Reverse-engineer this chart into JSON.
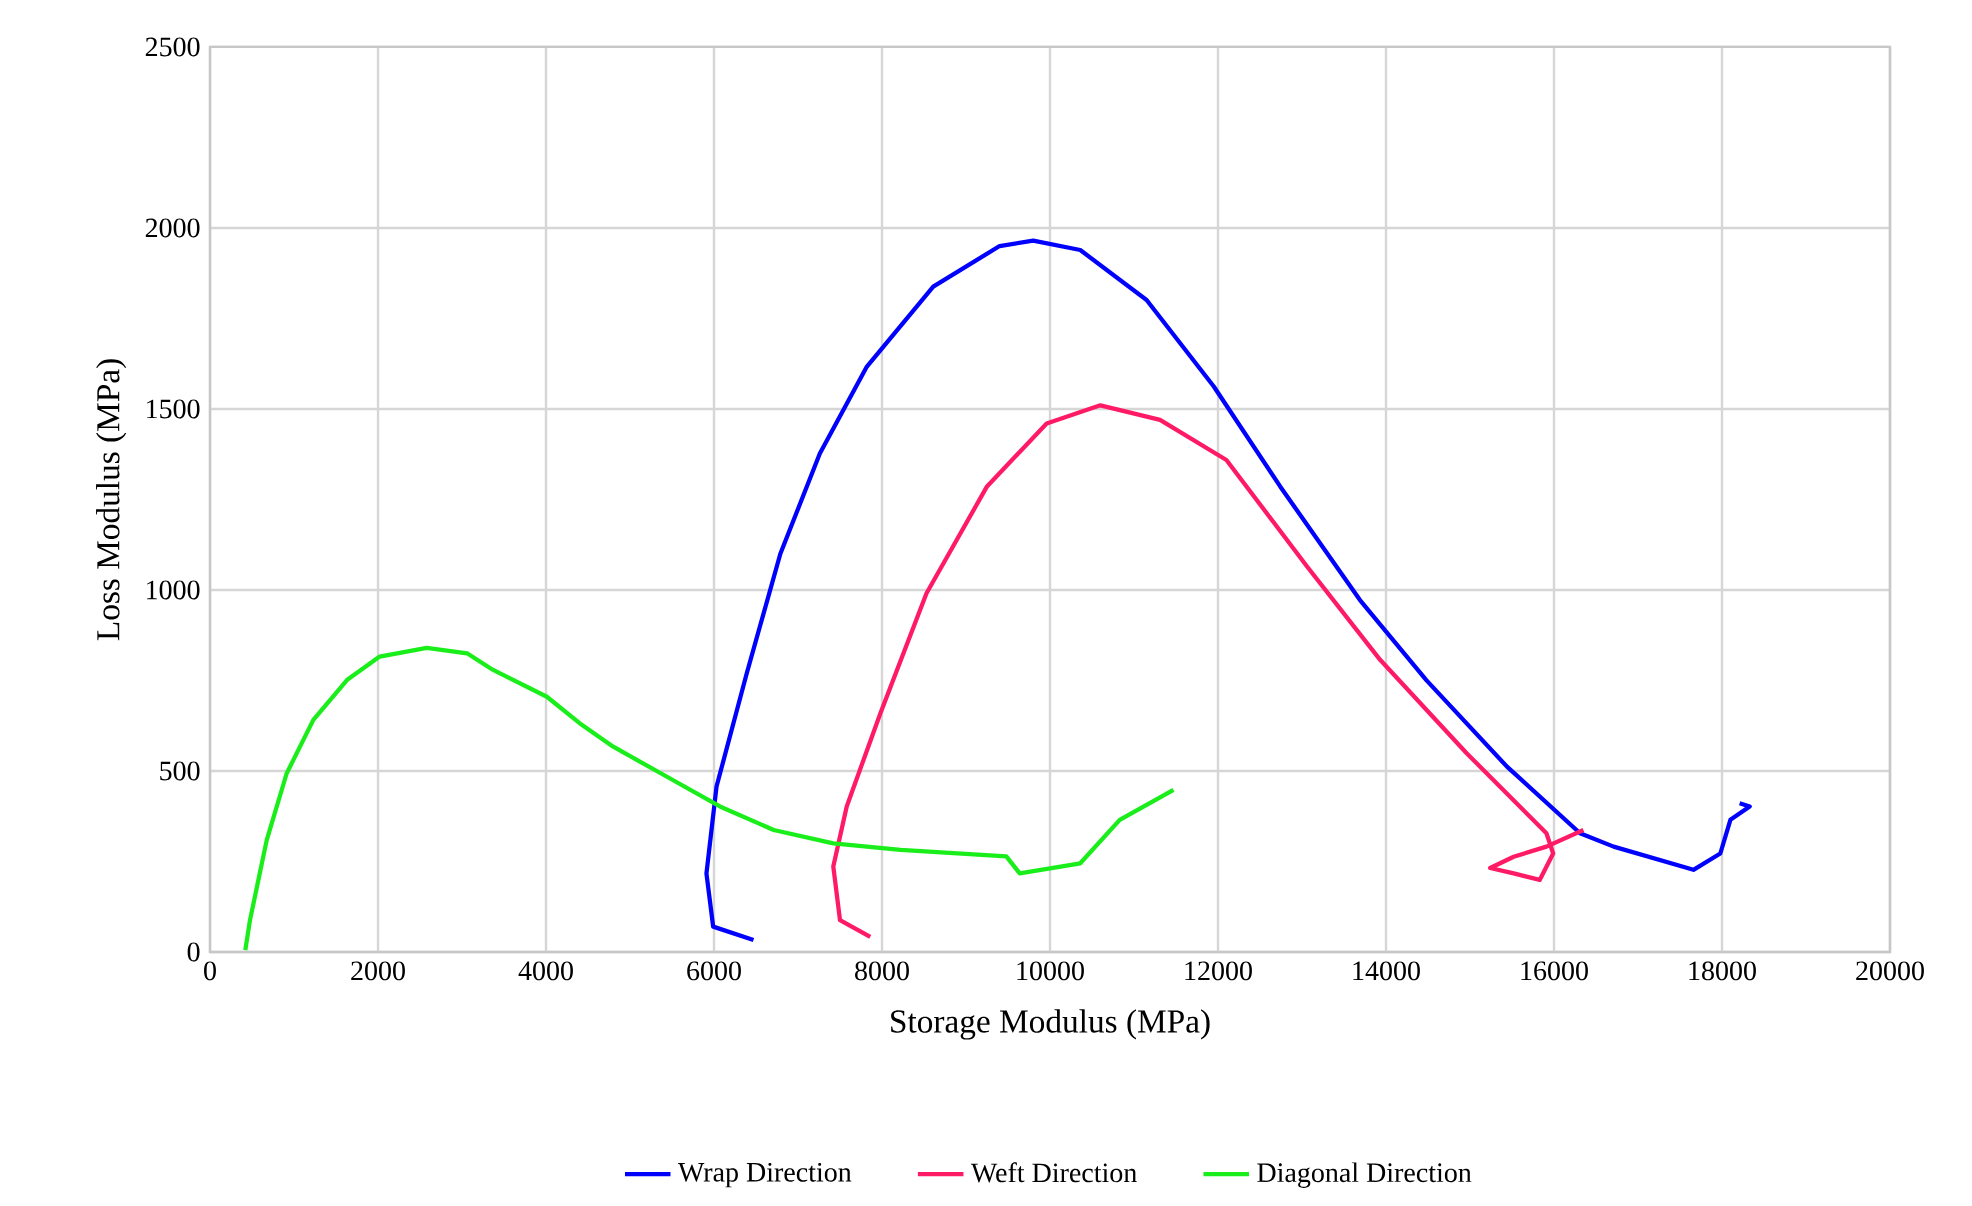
{
  "chart_data": {
    "type": "line",
    "xlabel": "Storage Modulus (MPa)",
    "ylabel": "Loss Modulus (MPa)",
    "xlim": [
      0,
      20000
    ],
    "ylim": [
      0,
      2500
    ],
    "xticks": [
      0,
      2000,
      4000,
      6000,
      8000,
      10000,
      12000,
      14000,
      16000,
      18000,
      20000
    ],
    "yticks": [
      0,
      500,
      1000,
      1500,
      2000,
      2500
    ],
    "grid": true,
    "legend": "bottom",
    "marker": "none",
    "line_style": "solid",
    "series": [
      {
        "name": "Wrap Direction",
        "color": "#0000ff",
        "x": [
          6470,
          5990,
          5910,
          6030,
          6390,
          6790,
          7260,
          7820,
          8610,
          9400,
          9800,
          10360,
          11150,
          11950,
          12740,
          13690,
          14480,
          15440,
          16310,
          16710,
          17660,
          17980,
          18100,
          18330,
          18210
        ],
        "values": [
          33,
          70,
          217,
          457,
          770,
          1100,
          1377,
          1617,
          1838,
          1950,
          1965,
          1939,
          1801,
          1562,
          1286,
          972,
          751,
          512,
          328,
          291,
          227,
          272,
          365,
          402,
          411
        ]
      },
      {
        "name": "Weft Direction",
        "color": "#ff1a66",
        "x": [
          7860,
          7500,
          7420,
          7580,
          7980,
          8530,
          9250,
          9960,
          10600,
          11310,
          12100,
          13060,
          13930,
          14960,
          15910,
          15990,
          15830,
          15520,
          15240,
          15520,
          15910,
          16350
        ],
        "values": [
          42,
          88,
          236,
          402,
          659,
          991,
          1286,
          1460,
          1510,
          1470,
          1359,
          1065,
          807,
          549,
          328,
          272,
          199,
          217,
          232,
          263,
          291,
          337
        ]
      },
      {
        "name": "Diagonal Direction",
        "color": "#1aee1a",
        "x": [
          420,
          476,
          675,
          912,
          1230,
          1630,
          2020,
          2580,
          3060,
          3370,
          4010,
          4400,
          4800,
          5440,
          6070,
          6710,
          7420,
          8220,
          9480,
          9640,
          10360,
          10830,
          11470
        ],
        "values": [
          5,
          88,
          309,
          493,
          641,
          751,
          816,
          840,
          825,
          779,
          705,
          632,
          567,
          484,
          402,
          337,
          300,
          282,
          264,
          217,
          245,
          365,
          448
        ]
      }
    ]
  }
}
